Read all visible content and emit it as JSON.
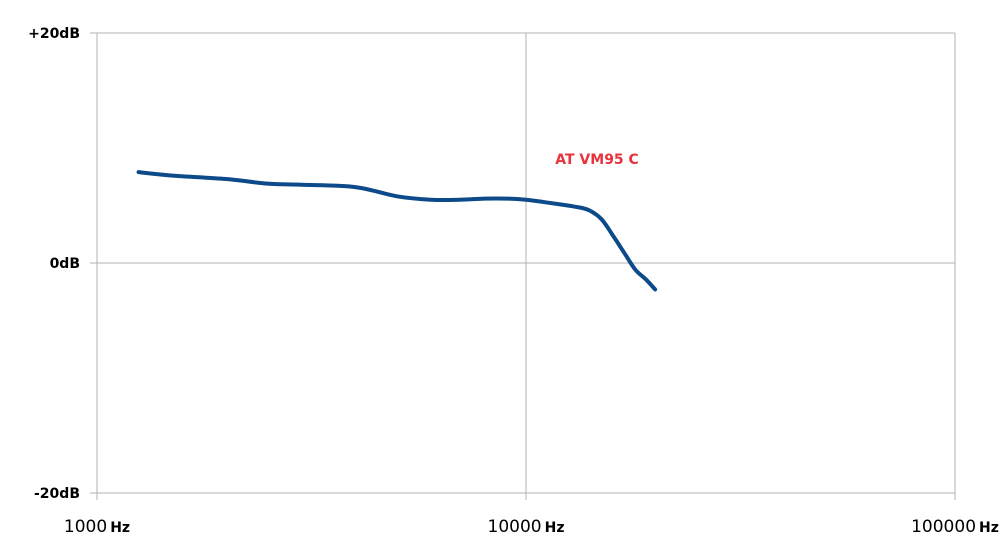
{
  "chart_data": {
    "type": "line",
    "title": "",
    "xlabel": "",
    "ylabel": "",
    "x_scale": "log",
    "xlim": [
      1000,
      100000
    ],
    "ylim": [
      -20,
      20
    ],
    "grid": true,
    "x_ticks": [
      {
        "value": 1000,
        "num": "1000",
        "unit": "Hz"
      },
      {
        "value": 10000,
        "num": "10000",
        "unit": "Hz"
      },
      {
        "value": 100000,
        "num": "100000",
        "unit": "Hz"
      }
    ],
    "y_ticks": [
      {
        "value": 20,
        "label": "+20dB"
      },
      {
        "value": 0,
        "label": "0dB"
      },
      {
        "value": -20,
        "label": "-20dB"
      }
    ],
    "series": [
      {
        "name": "AT VM95 C",
        "color": "#0d4a8a",
        "label_color": "#e8323c",
        "x": [
          1250,
          1500,
          2000,
          2500,
          3000,
          4000,
          5000,
          6000,
          7000,
          8000,
          9000,
          10000,
          11000,
          12000,
          13000,
          14000,
          15000,
          16000,
          17000,
          18000,
          19000,
          20000
        ],
        "y": [
          7.9,
          7.6,
          7.3,
          6.9,
          6.8,
          6.6,
          5.8,
          5.5,
          5.5,
          5.6,
          5.6,
          5.5,
          5.3,
          5.1,
          4.9,
          4.6,
          3.8,
          2.3,
          0.8,
          -0.6,
          -1.4,
          -2.3
        ]
      }
    ]
  }
}
